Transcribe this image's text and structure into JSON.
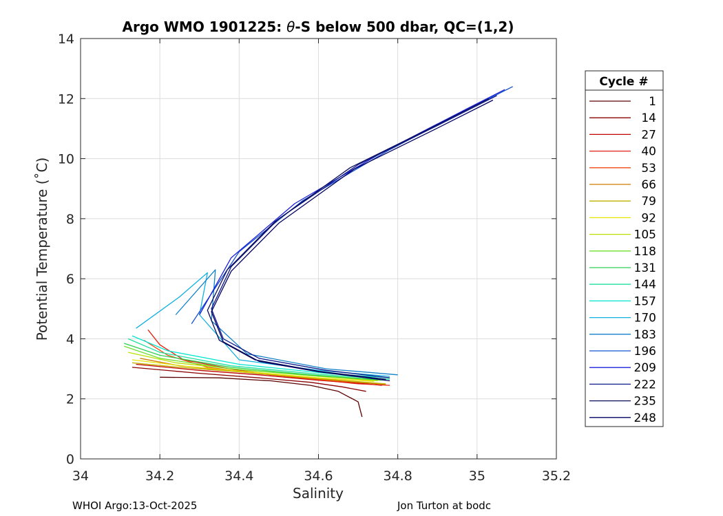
{
  "chart_data": {
    "type": "line",
    "title_prefix": "Argo WMO 1901225: ",
    "title_theta": "θ",
    "title_suffix": "-S below 500 dbar,  QC=(1,2)",
    "xlabel": "Salinity",
    "ylabel": "Potential Temperature (˚C)",
    "xlim": [
      34,
      35.2
    ],
    "ylim": [
      0,
      14
    ],
    "xticks": [
      34,
      34.2,
      34.4,
      34.6,
      34.8,
      35,
      35.2
    ],
    "xtick_labels": [
      "34",
      "34.2",
      "34.4",
      "34.6",
      "34.8",
      "35",
      "35.2"
    ],
    "yticks": [
      0,
      2,
      4,
      6,
      8,
      10,
      12,
      14
    ],
    "ytick_labels": [
      "0",
      "2",
      "4",
      "6",
      "8",
      "10",
      "12",
      "14"
    ],
    "grid": true,
    "legend_title": "Cycle #",
    "legend_position": "outside-right",
    "series": [
      {
        "name": "1",
        "color": "#5a0000",
        "points": [
          [
            34.2,
            2.72
          ],
          [
            34.35,
            2.7
          ],
          [
            34.48,
            2.6
          ],
          [
            34.58,
            2.45
          ],
          [
            34.65,
            2.25
          ],
          [
            34.7,
            1.9
          ],
          [
            34.71,
            1.4
          ]
        ]
      },
      {
        "name": "14",
        "color": "#8b0000",
        "points": [
          [
            34.13,
            3.05
          ],
          [
            34.3,
            2.85
          ],
          [
            34.45,
            2.7
          ],
          [
            34.58,
            2.55
          ],
          [
            34.66,
            2.4
          ],
          [
            34.72,
            2.25
          ]
        ]
      },
      {
        "name": "27",
        "color": "#c00000",
        "points": [
          [
            34.14,
            3.15
          ],
          [
            34.3,
            2.95
          ],
          [
            34.45,
            2.8
          ],
          [
            34.6,
            2.62
          ],
          [
            34.72,
            2.5
          ],
          [
            34.76,
            2.45
          ]
        ]
      },
      {
        "name": "40",
        "color": "#e02010",
        "points": [
          [
            34.17,
            4.3
          ],
          [
            34.2,
            3.8
          ],
          [
            34.26,
            3.3
          ],
          [
            34.4,
            2.95
          ],
          [
            34.55,
            2.7
          ],
          [
            34.7,
            2.5
          ],
          [
            34.78,
            2.45
          ]
        ]
      },
      {
        "name": "53",
        "color": "#f04a10",
        "points": [
          [
            34.16,
            3.95
          ],
          [
            34.22,
            3.45
          ],
          [
            34.32,
            3.05
          ],
          [
            34.48,
            2.8
          ],
          [
            34.62,
            2.62
          ],
          [
            34.75,
            2.5
          ]
        ]
      },
      {
        "name": "66",
        "color": "#d07a00",
        "points": [
          [
            34.15,
            3.35
          ],
          [
            34.25,
            3.1
          ],
          [
            34.4,
            2.9
          ],
          [
            34.55,
            2.72
          ],
          [
            34.7,
            2.55
          ],
          [
            34.77,
            2.48
          ]
        ]
      },
      {
        "name": "79",
        "color": "#c0b000",
        "points": [
          [
            34.13,
            3.2
          ],
          [
            34.25,
            3.05
          ],
          [
            34.42,
            2.88
          ],
          [
            34.58,
            2.7
          ],
          [
            34.72,
            2.55
          ],
          [
            34.77,
            2.5
          ]
        ]
      },
      {
        "name": "92",
        "color": "#e6e600",
        "points": [
          [
            34.13,
            3.3
          ],
          [
            34.27,
            3.08
          ],
          [
            34.44,
            2.88
          ],
          [
            34.6,
            2.7
          ],
          [
            34.74,
            2.58
          ]
        ]
      },
      {
        "name": "105",
        "color": "#b8e000",
        "points": [
          [
            34.12,
            3.55
          ],
          [
            34.24,
            3.2
          ],
          [
            34.42,
            2.95
          ],
          [
            34.6,
            2.75
          ],
          [
            34.75,
            2.6
          ]
        ]
      },
      {
        "name": "118",
        "color": "#6ee02a",
        "points": [
          [
            34.11,
            3.75
          ],
          [
            34.2,
            3.35
          ],
          [
            34.38,
            3.0
          ],
          [
            34.58,
            2.78
          ],
          [
            34.76,
            2.62
          ]
        ]
      },
      {
        "name": "131",
        "color": "#2ad050",
        "points": [
          [
            34.11,
            3.85
          ],
          [
            34.2,
            3.45
          ],
          [
            34.38,
            3.05
          ],
          [
            34.58,
            2.8
          ],
          [
            34.77,
            2.62
          ]
        ]
      },
      {
        "name": "144",
        "color": "#1ee0a0",
        "points": [
          [
            34.12,
            4.0
          ],
          [
            34.2,
            3.55
          ],
          [
            34.38,
            3.1
          ],
          [
            34.6,
            2.82
          ],
          [
            34.78,
            2.65
          ]
        ]
      },
      {
        "name": "157",
        "color": "#00e6d0",
        "points": [
          [
            34.13,
            4.1
          ],
          [
            34.22,
            3.6
          ],
          [
            34.4,
            3.15
          ],
          [
            34.62,
            2.85
          ],
          [
            34.78,
            2.7
          ]
        ]
      },
      {
        "name": "170",
        "color": "#10b0e0",
        "points": [
          [
            34.14,
            4.35
          ],
          [
            34.25,
            5.4
          ],
          [
            34.32,
            6.2
          ],
          [
            34.3,
            4.8
          ],
          [
            34.4,
            3.3
          ],
          [
            34.6,
            2.95
          ],
          [
            34.78,
            2.75
          ]
        ]
      },
      {
        "name": "183",
        "color": "#1080c8",
        "points": [
          [
            34.24,
            4.8
          ],
          [
            34.34,
            6.3
          ],
          [
            34.33,
            4.6
          ],
          [
            34.42,
            3.5
          ],
          [
            34.62,
            3.0
          ],
          [
            34.8,
            2.8
          ]
        ]
      },
      {
        "name": "196",
        "color": "#1450d0",
        "points": [
          [
            34.28,
            4.5
          ],
          [
            34.4,
            6.9
          ],
          [
            34.56,
            8.6
          ],
          [
            34.78,
            10.3
          ],
          [
            35.0,
            11.8
          ],
          [
            35.09,
            12.4
          ]
        ]
      },
      {
        "name": "209",
        "color": "#1a20d8",
        "points": [
          [
            34.3,
            4.8
          ],
          [
            34.38,
            6.7
          ],
          [
            34.54,
            8.5
          ],
          [
            34.76,
            10.2
          ],
          [
            34.98,
            11.7
          ],
          [
            35.07,
            12.3
          ]
        ]
      },
      {
        "name": "222",
        "color": "#101a8a",
        "points": [
          [
            34.78,
            2.7
          ],
          [
            34.62,
            2.95
          ],
          [
            34.45,
            3.35
          ],
          [
            34.36,
            4.0
          ],
          [
            34.33,
            5.0
          ],
          [
            34.38,
            6.4
          ],
          [
            34.5,
            8.0
          ],
          [
            34.7,
            9.8
          ],
          [
            34.9,
            11.1
          ],
          [
            35.05,
            12.1
          ]
        ]
      },
      {
        "name": "235",
        "color": "#0a0a5a",
        "points": [
          [
            34.77,
            2.65
          ],
          [
            34.6,
            2.92
          ],
          [
            34.44,
            3.3
          ],
          [
            34.35,
            3.95
          ],
          [
            34.32,
            4.95
          ],
          [
            34.37,
            6.3
          ],
          [
            34.49,
            7.9
          ],
          [
            34.68,
            9.7
          ],
          [
            34.88,
            11.0
          ],
          [
            35.03,
            12.0
          ]
        ]
      },
      {
        "name": "248",
        "color": "#000060",
        "points": [
          [
            34.78,
            2.6
          ],
          [
            34.6,
            2.9
          ],
          [
            34.45,
            3.25
          ],
          [
            34.36,
            3.9
          ],
          [
            34.33,
            4.9
          ],
          [
            34.38,
            6.25
          ],
          [
            34.5,
            7.85
          ],
          [
            34.69,
            9.65
          ],
          [
            34.89,
            10.95
          ],
          [
            35.04,
            11.95
          ]
        ]
      }
    ]
  },
  "footer": {
    "left": "WHOI Argo:13-Oct-2025",
    "right": "Jon Turton at bodc"
  }
}
